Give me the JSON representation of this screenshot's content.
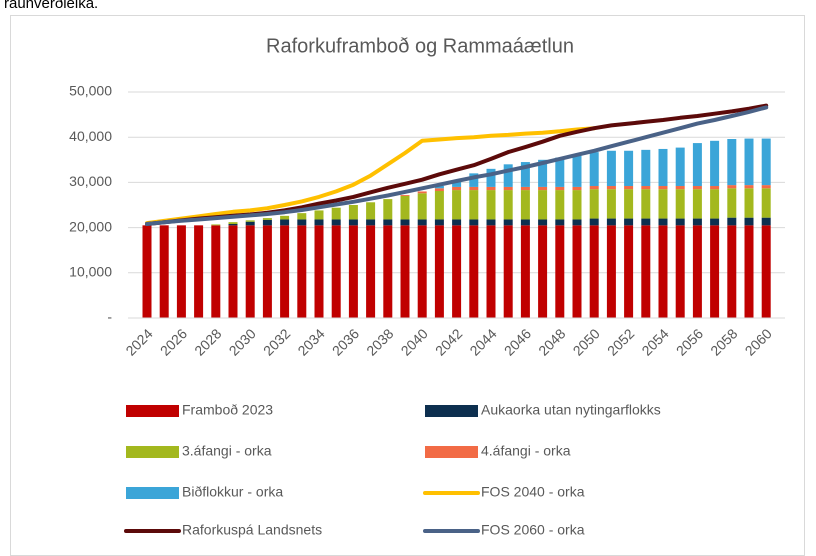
{
  "caption": "raunverðleika.",
  "chart_data": {
    "type": "bar",
    "stacked": true,
    "grid": true,
    "title": "Raforkuframboð og Rammaáætlun",
    "categories": [
      "2024",
      null,
      "2026",
      null,
      "2028",
      null,
      "2030",
      null,
      "2032",
      null,
      "2034",
      null,
      "2036",
      null,
      "2038",
      null,
      "2040",
      null,
      "2042",
      null,
      "2044",
      null,
      "2046",
      null,
      "2048",
      null,
      "2050",
      null,
      "2052",
      null,
      "2054",
      null,
      "2056",
      null,
      "2058",
      null,
      "2060"
    ],
    "ylim": [
      0,
      50000
    ],
    "yticks": [
      {
        "value": 0,
        "label": "-"
      },
      {
        "value": 10000,
        "label": "10,000"
      },
      {
        "value": 20000,
        "label": "20,000"
      },
      {
        "value": 30000,
        "label": "30,000"
      },
      {
        "value": 40000,
        "label": "40,000"
      },
      {
        "value": 50000,
        "label": "50,000"
      }
    ],
    "series": [
      {
        "name": "Framboð 2023",
        "type": "bar",
        "color": "#c00000",
        "values": [
          20500,
          20500,
          20500,
          20500,
          20500,
          20500,
          20500,
          20500,
          20500,
          20500,
          20500,
          20500,
          20500,
          20500,
          20500,
          20500,
          20500,
          20500,
          20500,
          20500,
          20500,
          20500,
          20500,
          20500,
          20500,
          20500,
          20500,
          20500,
          20500,
          20500,
          20500,
          20500,
          20500,
          20500,
          20500,
          20500,
          20500
        ]
      },
      {
        "name": "Aukaorka utan nytingarflokks",
        "type": "bar",
        "color": "#0d2f4f",
        "values": [
          0,
          0,
          0,
          0,
          0,
          300,
          800,
          1200,
          1300,
          1300,
          1300,
          1300,
          1300,
          1300,
          1300,
          1300,
          1300,
          1300,
          1300,
          1300,
          1300,
          1300,
          1300,
          1300,
          1300,
          1300,
          1500,
          1500,
          1500,
          1500,
          1500,
          1500,
          1500,
          1500,
          1700,
          1700,
          1700
        ]
      },
      {
        "name": "3.áfangi - orka",
        "type": "bar",
        "color": "#a3b81e",
        "values": [
          0,
          0,
          0,
          0,
          200,
          400,
          300,
          400,
          800,
          1400,
          2000,
          2600,
          3200,
          3800,
          4500,
          5200,
          5800,
          6300,
          6500,
          6500,
          6500,
          6500,
          6500,
          6500,
          6500,
          6500,
          6500,
          6500,
          6500,
          6500,
          6500,
          6500,
          6500,
          6500,
          6500,
          6500,
          6500
        ]
      },
      {
        "name": "4.áfangi - orka",
        "type": "bar",
        "color": "#f26b45",
        "values": [
          0,
          0,
          0,
          0,
          0,
          0,
          0,
          0,
          0,
          0,
          0,
          0,
          0,
          0,
          0,
          200,
          400,
          600,
          700,
          700,
          700,
          700,
          700,
          700,
          700,
          700,
          700,
          700,
          700,
          700,
          700,
          700,
          700,
          700,
          700,
          700,
          700
        ]
      },
      {
        "name": "Biðflokkur - orka",
        "type": "bar",
        "color": "#3ba5d8",
        "values": [
          0,
          0,
          0,
          0,
          0,
          0,
          0,
          0,
          0,
          0,
          0,
          0,
          0,
          0,
          0,
          0,
          0,
          500,
          1500,
          3000,
          4000,
          5000,
          5500,
          6000,
          6500,
          7200,
          7500,
          7800,
          7800,
          8000,
          8200,
          8500,
          9500,
          10000,
          10200,
          10300,
          10300
        ]
      },
      {
        "name": "FOS 2040 - orka",
        "type": "line",
        "color": "#ffc000",
        "values": [
          21000,
          21500,
          22000,
          22500,
          23000,
          23500,
          23800,
          24300,
          25000,
          25800,
          26800,
          28000,
          29500,
          31500,
          34000,
          36500,
          39200,
          39500,
          39800,
          40000,
          40300,
          40500,
          40800,
          41000,
          41300,
          41700,
          42000,
          null,
          null,
          null,
          null,
          null,
          null,
          null,
          null,
          null,
          null
        ]
      },
      {
        "name": "Raforkuspá Landsnets",
        "type": "line",
        "color": "#5c0a0a",
        "values": [
          20800,
          21200,
          21600,
          22000,
          22300,
          22600,
          22900,
          23300,
          23800,
          24500,
          25300,
          26000,
          26800,
          27800,
          28800,
          29700,
          30600,
          31800,
          32800,
          33800,
          35200,
          36700,
          37800,
          39000,
          40300,
          41200,
          42000,
          42600,
          43000,
          43400,
          43800,
          44300,
          44700,
          45200,
          45700,
          46300,
          47000
        ]
      },
      {
        "name": "FOS 2060 - orka",
        "type": "line",
        "color": "#4a6287",
        "values": [
          20800,
          21200,
          21500,
          21800,
          22100,
          22400,
          22700,
          23000,
          23400,
          23900,
          24500,
          25100,
          25700,
          26400,
          27100,
          27900,
          28700,
          29500,
          30300,
          31100,
          31800,
          32600,
          33400,
          34300,
          35200,
          36100,
          37000,
          38000,
          39000,
          40000,
          41000,
          42000,
          43000,
          43800,
          44700,
          45600,
          46600
        ]
      }
    ]
  }
}
